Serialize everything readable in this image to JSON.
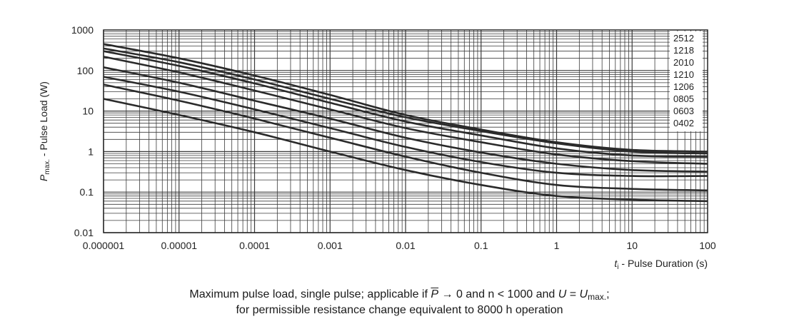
{
  "chart_data": {
    "type": "line",
    "xscale": "log",
    "yscale": "log",
    "xlim": [
      1e-06,
      100
    ],
    "ylim": [
      0.01,
      1000
    ],
    "x_ticks": [
      "0.000001",
      "0.00001",
      "0.0001",
      "0.001",
      "0.01",
      "0.1",
      "1",
      "10",
      "100"
    ],
    "y_ticks": [
      "0.01",
      "0.1",
      "1",
      "10",
      "100",
      "1000"
    ],
    "ylabel": {
      "symbol": "P",
      "subscript": "max.",
      "text": " - Pulse Load (W)"
    },
    "xlabel": {
      "symbol": "t",
      "subscript": "i",
      "text": " - Pulse Duration (s)"
    },
    "grid": true,
    "legend_position": "top-right",
    "legend": [
      "2512",
      "1218",
      "2010",
      "1210",
      "1206",
      "0805",
      "0603",
      "0402"
    ],
    "series": [
      {
        "name": "2512",
        "x": [
          1e-06,
          1e-05,
          0.0001,
          0.001,
          0.01,
          0.1,
          1,
          10,
          100
        ],
        "y": [
          450,
          200,
          75,
          25,
          8,
          3.5,
          1.7,
          1.1,
          1.0
        ]
      },
      {
        "name": "1218",
        "x": [
          1e-06,
          1e-05,
          0.0001,
          0.001,
          0.01,
          0.1,
          1,
          10,
          100
        ],
        "y": [
          350,
          160,
          60,
          20,
          7,
          3.2,
          1.6,
          1.0,
          0.9
        ]
      },
      {
        "name": "2010",
        "x": [
          1e-06,
          1e-05,
          0.0001,
          0.001,
          0.01,
          0.1,
          1,
          10,
          100
        ],
        "y": [
          300,
          130,
          48,
          16,
          5.5,
          2.5,
          1.2,
          0.8,
          0.75
        ]
      },
      {
        "name": "1210",
        "x": [
          1e-06,
          1e-05,
          0.0001,
          0.001,
          0.01,
          0.1,
          1,
          10,
          100
        ],
        "y": [
          220,
          90,
          32,
          11,
          3.8,
          1.7,
          0.85,
          0.58,
          0.5
        ]
      },
      {
        "name": "1206",
        "x": [
          1e-06,
          1e-05,
          0.0001,
          0.001,
          0.01,
          0.1,
          1,
          10,
          100
        ],
        "y": [
          120,
          50,
          18,
          6.5,
          2.2,
          0.95,
          0.5,
          0.35,
          0.32
        ]
      },
      {
        "name": "0805",
        "x": [
          1e-06,
          1e-05,
          0.0001,
          0.001,
          0.01,
          0.1,
          1,
          10,
          100
        ],
        "y": [
          70,
          30,
          11,
          3.8,
          1.3,
          0.55,
          0.3,
          0.25,
          0.25
        ]
      },
      {
        "name": "0603",
        "x": [
          1e-06,
          1e-05,
          0.0001,
          0.001,
          0.01,
          0.1,
          1,
          10,
          100
        ],
        "y": [
          45,
          18,
          6.5,
          2.2,
          0.75,
          0.3,
          0.15,
          0.12,
          0.11
        ]
      },
      {
        "name": "0402",
        "x": [
          1e-06,
          1e-05,
          0.0001,
          0.001,
          0.01,
          0.1,
          1,
          10,
          100
        ],
        "y": [
          20,
          8,
          3,
          1,
          0.35,
          0.15,
          0.08,
          0.065,
          0.06
        ]
      }
    ]
  },
  "caption": {
    "line1_pre": "Maximum pulse load, single pulse; applicable if ",
    "line1_pbar": "P",
    "line1_mid": " → 0 and n < 1000 and ",
    "line1_u": "U",
    "line1_eq": " = ",
    "line1_umax": "U",
    "line1_sub": "max.",
    "line1_end": ";",
    "line2": "for permissible resistance change equivalent to 8000 h operation"
  },
  "colors": {
    "grid": "#3a3a3a",
    "line": "#2a2a2a",
    "text": "#222222"
  }
}
